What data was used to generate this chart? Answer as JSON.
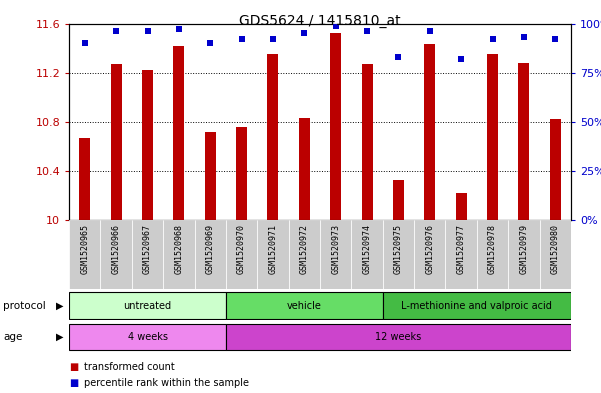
{
  "title": "GDS5624 / 1415810_at",
  "samples": [
    "GSM1520965",
    "GSM1520966",
    "GSM1520967",
    "GSM1520968",
    "GSM1520969",
    "GSM1520970",
    "GSM1520971",
    "GSM1520972",
    "GSM1520973",
    "GSM1520974",
    "GSM1520975",
    "GSM1520976",
    "GSM1520977",
    "GSM1520978",
    "GSM1520979",
    "GSM1520980"
  ],
  "bar_values": [
    10.67,
    11.27,
    11.22,
    11.42,
    10.72,
    10.76,
    11.35,
    10.83,
    11.52,
    11.27,
    10.33,
    11.43,
    10.22,
    11.35,
    11.28,
    10.82
  ],
  "dot_values": [
    90,
    96,
    96,
    97,
    90,
    92,
    92,
    95,
    99,
    96,
    83,
    96,
    82,
    92,
    93,
    92
  ],
  "ylim_left": [
    10,
    11.6
  ],
  "ylim_right": [
    0,
    100
  ],
  "yticks_left": [
    10,
    10.4,
    10.8,
    11.2,
    11.6
  ],
  "ytick_labels_left": [
    "10",
    "10.4",
    "10.8",
    "11.2",
    "11.6"
  ],
  "yticks_right": [
    0,
    25,
    50,
    75,
    100
  ],
  "ytick_labels_right": [
    "0%",
    "25%",
    "50%",
    "75%",
    "100%"
  ],
  "gridlines": [
    10.4,
    10.8,
    11.2
  ],
  "bar_color": "#bb0000",
  "dot_color": "#0000cc",
  "protocol_groups": [
    {
      "label": "untreated",
      "start": 0,
      "end": 4,
      "color": "#ccffcc"
    },
    {
      "label": "vehicle",
      "start": 5,
      "end": 9,
      "color": "#66dd66"
    },
    {
      "label": "L-methionine and valproic acid",
      "start": 10,
      "end": 15,
      "color": "#44bb44"
    }
  ],
  "age_groups": [
    {
      "label": "4 weeks",
      "start": 0,
      "end": 4,
      "color": "#ee88ee"
    },
    {
      "label": "12 weeks",
      "start": 5,
      "end": 15,
      "color": "#cc44cc"
    }
  ],
  "label_bg_color": "#cccccc",
  "legend_items": [
    {
      "label": "transformed count",
      "color": "#bb0000"
    },
    {
      "label": "percentile rank within the sample",
      "color": "#0000cc"
    }
  ]
}
